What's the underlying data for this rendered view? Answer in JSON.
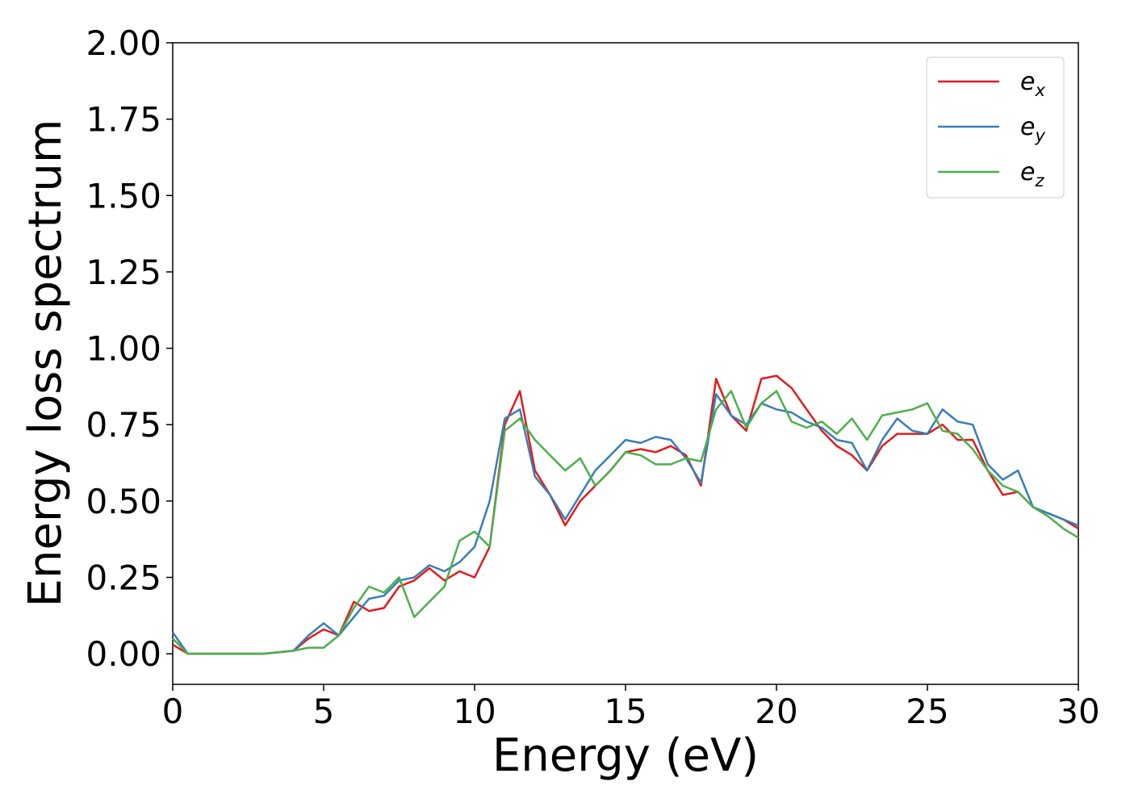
{
  "chart_data": {
    "type": "line",
    "xlabel": "Energy (eV)",
    "ylabel": "Energy loss spectrum",
    "x": [
      0,
      0.5,
      1,
      1.5,
      2,
      2.5,
      3,
      3.5,
      4,
      4.5,
      5,
      5.5,
      6,
      6.5,
      7,
      7.5,
      8,
      8.5,
      9,
      9.5,
      10,
      10.5,
      11,
      11.5,
      12,
      12.5,
      13,
      13.5,
      14,
      14.5,
      15,
      15.5,
      16,
      16.5,
      17,
      17.5,
      18,
      18.5,
      19,
      19.5,
      20,
      20.5,
      21,
      21.5,
      22,
      22.5,
      23,
      23.5,
      24,
      24.5,
      25,
      25.5,
      26,
      26.5,
      27,
      27.5,
      28,
      28.5,
      29,
      29.5,
      30
    ],
    "series": [
      {
        "name": "ex",
        "color": "#e41a1c",
        "values": [
          0.03,
          0,
          0,
          0,
          0,
          0,
          0,
          0.005,
          0.01,
          0.05,
          0.08,
          0.06,
          0.17,
          0.14,
          0.15,
          0.22,
          0.24,
          0.28,
          0.24,
          0.27,
          0.25,
          0.35,
          0.75,
          0.86,
          0.6,
          0.52,
          0.42,
          0.5,
          0.55,
          0.6,
          0.66,
          0.67,
          0.66,
          0.68,
          0.65,
          0.55,
          0.9,
          0.78,
          0.73,
          0.9,
          0.91,
          0.87,
          0.8,
          0.73,
          0.68,
          0.65,
          0.6,
          0.68,
          0.72,
          0.72,
          0.72,
          0.75,
          0.7,
          0.7,
          0.6,
          0.52,
          0.53,
          0.48,
          0.46,
          0.44,
          0.41
        ]
      },
      {
        "name": "ey",
        "color": "#377eb8",
        "values": [
          0.07,
          0,
          0,
          0,
          0,
          0,
          0,
          0.005,
          0.01,
          0.06,
          0.1,
          0.06,
          0.12,
          0.18,
          0.19,
          0.24,
          0.25,
          0.29,
          0.27,
          0.3,
          0.35,
          0.5,
          0.77,
          0.8,
          0.58,
          0.52,
          0.44,
          0.52,
          0.6,
          0.65,
          0.7,
          0.69,
          0.71,
          0.7,
          0.64,
          0.56,
          0.85,
          0.78,
          0.75,
          0.82,
          0.8,
          0.79,
          0.76,
          0.74,
          0.7,
          0.69,
          0.6,
          0.7,
          0.77,
          0.73,
          0.72,
          0.8,
          0.76,
          0.75,
          0.62,
          0.57,
          0.6,
          0.48,
          0.46,
          0.44,
          0.42
        ]
      },
      {
        "name": "ez",
        "color": "#4daf4a",
        "values": [
          0.05,
          0,
          0,
          0,
          0,
          0,
          0,
          0.005,
          0.01,
          0.02,
          0.02,
          0.06,
          0.15,
          0.22,
          0.2,
          0.25,
          0.12,
          0.17,
          0.22,
          0.37,
          0.4,
          0.35,
          0.73,
          0.77,
          0.7,
          0.65,
          0.6,
          0.64,
          0.55,
          0.6,
          0.66,
          0.65,
          0.62,
          0.62,
          0.64,
          0.63,
          0.8,
          0.86,
          0.74,
          0.82,
          0.86,
          0.76,
          0.74,
          0.76,
          0.72,
          0.77,
          0.7,
          0.78,
          0.79,
          0.8,
          0.82,
          0.73,
          0.72,
          0.67,
          0.6,
          0.55,
          0.53,
          0.48,
          0.45,
          0.41,
          0.38
        ]
      }
    ],
    "xlim": [
      0,
      30
    ],
    "xticks": [
      0,
      5,
      10,
      15,
      20,
      25,
      30
    ],
    "ylim": [
      -0.1,
      2.0
    ],
    "yticks": [
      {
        "value": 0,
        "label": "0.00"
      },
      {
        "value": 0.25,
        "label": "0.25"
      },
      {
        "value": 0.5,
        "label": "0.50"
      },
      {
        "value": 0.75,
        "label": "0.75"
      },
      {
        "value": 1.0,
        "label": "1.00"
      },
      {
        "value": 1.25,
        "label": "1.25"
      },
      {
        "value": 1.5,
        "label": "1.50"
      },
      {
        "value": 1.75,
        "label": "1.75"
      },
      {
        "value": 2.0,
        "label": "2.00"
      }
    ],
    "legend": "upper right",
    "grid": false
  }
}
